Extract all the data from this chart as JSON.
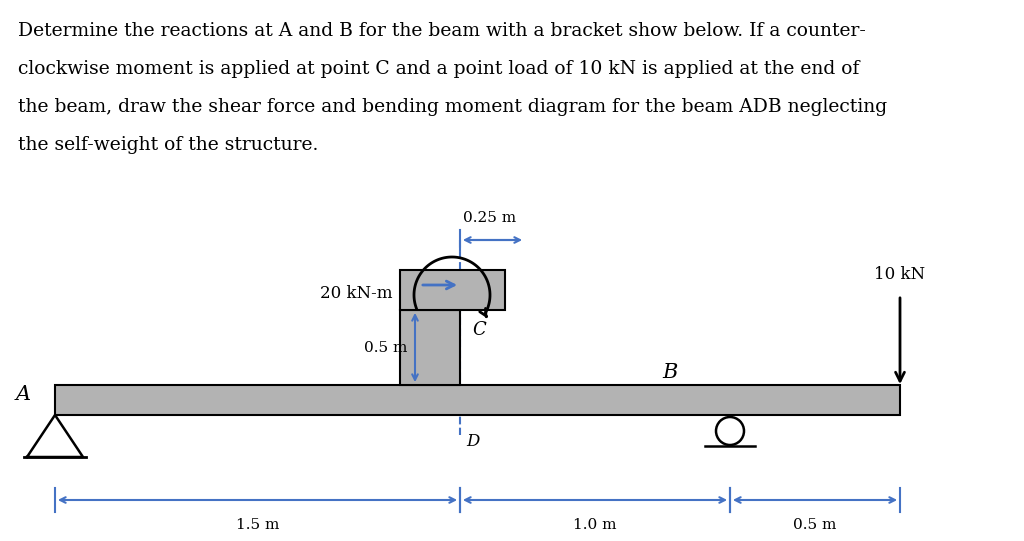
{
  "bg_color": "#ffffff",
  "beam_color": "#b3b3b3",
  "beam_outline": "#000000",
  "blue_color": "#4472c4",
  "text_color": "#000000",
  "load_label": "10 kN",
  "moment_label": "20 kN-m",
  "height_label": "0.5 m",
  "bracket_dim_label": "0.25 m",
  "label_A": "A",
  "label_B": "B",
  "label_C": "C",
  "label_D": "D",
  "dim_1p5": "1.5 m",
  "dim_1p0": "1.0 m",
  "dim_0p5": "0.5 m",
  "text_lines": [
    "Determine the reactions at A and B for the beam with a bracket show below. If a counter-",
    "clockwise moment is applied at point C and a point load of 10 kN is applied at the end of",
    "the beam, draw the shear force and bending moment diagram for the beam ADB neglecting",
    "the self-weight of the structure."
  ]
}
